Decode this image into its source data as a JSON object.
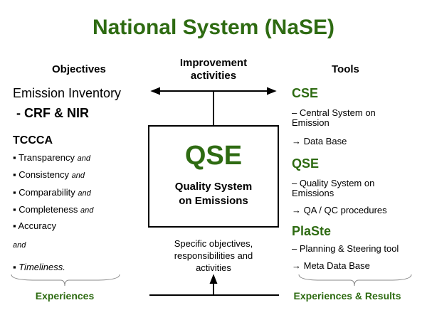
{
  "title": "National System (NaSE)",
  "objectives": {
    "heading": "Objectives",
    "inventory": "Emission Inventory",
    "inventory_sub": " - CRF & NIR",
    "tccca": "TCCCA",
    "items": [
      {
        "label": "Transparency",
        "suffix": "and"
      },
      {
        "label": "Consistency",
        "suffix": "and"
      },
      {
        "label": "Comparability",
        "suffix": "and"
      },
      {
        "label": "Completeness",
        "suffix": "and"
      },
      {
        "label": "Accuracy",
        "suffix": ""
      }
    ],
    "and": "and",
    "last": "Timeliness.",
    "footer": "Experiences"
  },
  "center": {
    "top_line1": "Improvement",
    "top_line2": "activities",
    "box_title": "QSE",
    "box_sub1": "Quality System",
    "box_sub2": "on Emissions",
    "bottom1": "Specific objectives,",
    "bottom2": "responsibilities and",
    "bottom3": "activities"
  },
  "tools": {
    "heading": "Tools",
    "items": [
      {
        "name": "CSE",
        "desc1": "– Central System on",
        "desc2": "Emission",
        "result": "→ Data Base"
      },
      {
        "name": "QSE",
        "desc1": "– Quality System on",
        "desc2": "Emissions",
        "result": "→ QA / QC procedures"
      },
      {
        "name": "PlaSte",
        "desc1": "– Planning & Steering tool",
        "desc2": "",
        "result": "→ Meta Data Base"
      }
    ],
    "footer": "Experiences & Results"
  },
  "colors": {
    "accent": "#2e6b12"
  }
}
